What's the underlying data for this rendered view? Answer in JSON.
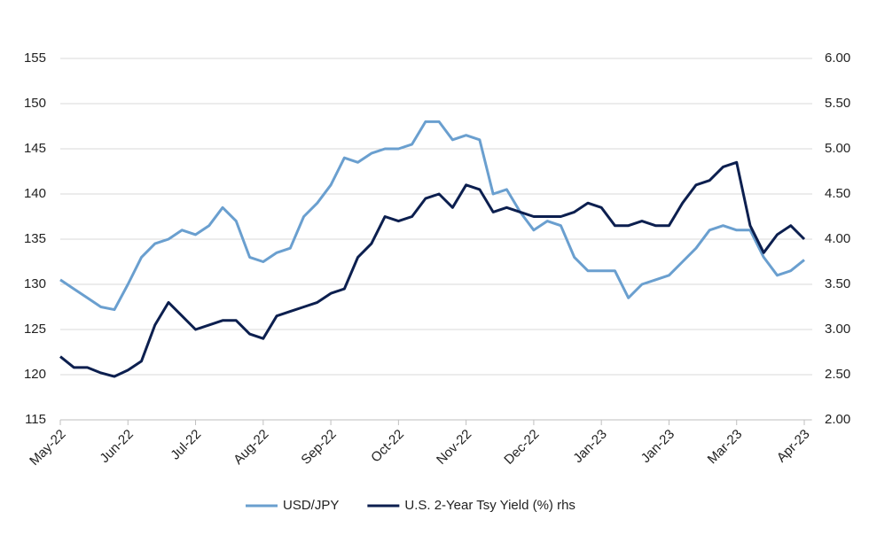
{
  "chart_data": {
    "type": "line",
    "categories": [
      "May-22",
      null,
      null,
      null,
      null,
      "Jun-22",
      null,
      null,
      null,
      null,
      "Jul-22",
      null,
      null,
      null,
      null,
      "Aug-22",
      null,
      null,
      null,
      null,
      "Sep-22",
      null,
      null,
      null,
      null,
      "Oct-22",
      null,
      null,
      null,
      null,
      "Nov-22",
      null,
      null,
      null,
      null,
      "Dec-22",
      null,
      null,
      null,
      null,
      "Jan-23",
      null,
      null,
      null,
      null,
      "Jan-23",
      null,
      null,
      null,
      null,
      "Mar-23",
      null,
      null,
      null,
      null,
      "Apr-23"
    ],
    "series": [
      {
        "name": "USD/JPY",
        "color": "#6a9fcf",
        "values": [
          130.5,
          129.5,
          128.5,
          127.5,
          127.2,
          130,
          133,
          134.5,
          135,
          136,
          135.5,
          136.5,
          138.5,
          137,
          133,
          132.5,
          133.5,
          134,
          137.5,
          139,
          141,
          144,
          143.5,
          144.5,
          145,
          145,
          145.5,
          148,
          148,
          146,
          146.5,
          146,
          140,
          140.5,
          138,
          136,
          137,
          136.5,
          133,
          131.5,
          131.5,
          131.5,
          128.5,
          130,
          130.5,
          131,
          132.5,
          134,
          136,
          136.5,
          136,
          136,
          133,
          131,
          131.5,
          132.7
        ]
      },
      {
        "name": "U.S. 2-Year Tsy Yield (%) rhs",
        "color": "#0c1f4f",
        "axis": "y2",
        "values": [
          2.7,
          2.58,
          2.58,
          2.52,
          2.48,
          2.55,
          2.65,
          3.05,
          3.3,
          3.15,
          3.0,
          3.05,
          3.1,
          3.1,
          2.95,
          2.9,
          3.15,
          3.2,
          3.25,
          3.3,
          3.4,
          3.45,
          3.8,
          3.95,
          4.25,
          4.2,
          4.25,
          4.45,
          4.5,
          4.35,
          4.6,
          4.55,
          4.3,
          4.35,
          4.3,
          4.25,
          4.25,
          4.25,
          4.3,
          4.4,
          4.35,
          4.15,
          4.15,
          4.2,
          4.15,
          4.15,
          4.4,
          4.6,
          4.65,
          4.8,
          4.85,
          4.15,
          3.85,
          4.05,
          4.15,
          4.0
        ]
      }
    ],
    "ylim": [
      115,
      155
    ],
    "yticks": [
      115,
      120,
      125,
      130,
      135,
      140,
      145,
      150,
      155
    ],
    "y2lim": [
      2,
      6
    ],
    "y2ticks": [
      {
        "value": 2,
        "label": "2.00"
      },
      {
        "value": 2.5,
        "label": "2.50"
      },
      {
        "value": 3,
        "label": "3.00"
      },
      {
        "value": 3.5,
        "label": "3.50"
      },
      {
        "value": 4,
        "label": "4.00"
      },
      {
        "value": 4.5,
        "label": "4.50"
      },
      {
        "value": 5,
        "label": "5.00"
      },
      {
        "value": 5.5,
        "label": "5.50"
      },
      {
        "value": 6,
        "label": "6.00"
      }
    ],
    "grid": true,
    "legend": "bottom"
  }
}
